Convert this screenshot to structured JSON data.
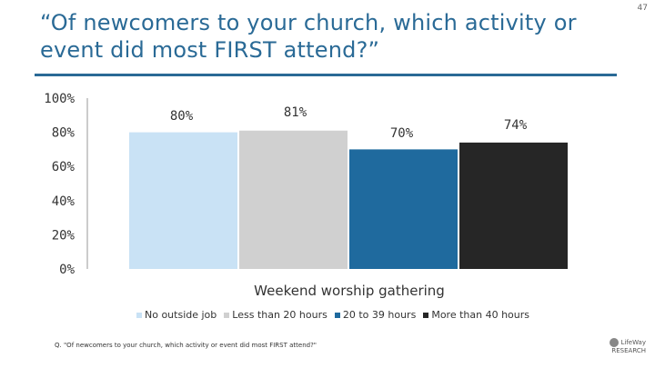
{
  "page_number": "47",
  "title": "“Of newcomers to your church, which activity or event did most FIRST attend?”",
  "footnote": "Q. \"Of newcomers to your church, which activity or event did most FIRST attend?\"",
  "logo": {
    "line1": "LifeWay",
    "line2": "RESEARCH"
  },
  "chart_data": {
    "type": "bar",
    "categories": [
      "Weekend worship gathering"
    ],
    "xlabel": "Weekend worship gathering",
    "ylabel": "",
    "ylim": [
      0,
      100
    ],
    "yticks": [
      "100%",
      "80%",
      "60%",
      "40%",
      "20%",
      "0%"
    ],
    "ytick_values": [
      100,
      80,
      60,
      40,
      20,
      0
    ],
    "grid": false,
    "legend_position": "bottom",
    "series": [
      {
        "name": "No outside job",
        "values": [
          80
        ],
        "label": "80%",
        "color": "#c9e2f5"
      },
      {
        "name": "Less than 20 hours",
        "values": [
          81
        ],
        "label": "81%",
        "color": "#d0d0d0"
      },
      {
        "name": "20 to 39 hours",
        "values": [
          70
        ],
        "label": "70%",
        "color": "#1f6a9e"
      },
      {
        "name": "More than 40 hours",
        "values": [
          74
        ],
        "label": "74%",
        "color": "#262626"
      }
    ]
  }
}
